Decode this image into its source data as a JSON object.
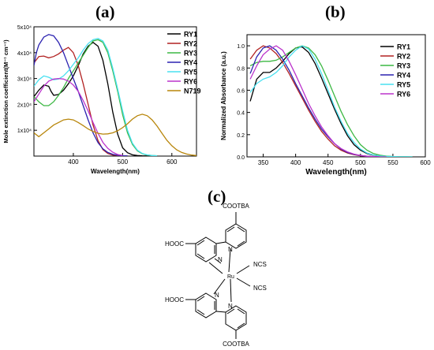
{
  "panels": {
    "a": "(a)",
    "b": "(b)",
    "c": "(c)"
  },
  "chart_data": [
    {
      "type": "line",
      "panel": "(a)",
      "xlabel": "Wavelength(nm)",
      "ylabel": "Mole extinction coefficient(M⁻¹ cm⁻¹)",
      "xlim": [
        320,
        650
      ],
      "ylim": [
        0,
        50000
      ],
      "xticks": [
        400,
        500,
        600
      ],
      "xtick_labels": [
        "400",
        "500",
        "600"
      ],
      "yticks": [
        10000,
        20000,
        30000,
        40000,
        50000
      ],
      "ytick_labels": [
        "1x10⁴",
        "2x10⁴",
        "3x10⁴",
        "4x10⁴",
        "5x10⁴"
      ],
      "legend_position": "top-right",
      "series": [
        {
          "name": "RY1",
          "color": "#000000",
          "x": [
            320,
            330,
            340,
            350,
            355,
            360,
            370,
            380,
            390,
            400,
            410,
            420,
            430,
            440,
            450,
            460,
            470,
            480,
            490,
            500,
            510,
            520,
            530,
            540,
            550
          ],
          "y": [
            23000,
            25500,
            27500,
            27000,
            25000,
            23500,
            23800,
            25500,
            28000,
            31000,
            35000,
            39500,
            42500,
            44000,
            42500,
            37000,
            28000,
            17000,
            8500,
            3200,
            1300,
            500,
            200,
            100,
            50
          ]
        },
        {
          "name": "RY2",
          "color": "#b22222",
          "x": [
            320,
            330,
            340,
            350,
            360,
            370,
            380,
            390,
            400,
            410,
            420,
            430,
            440,
            450,
            460,
            470,
            480,
            490,
            500,
            510
          ],
          "y": [
            36000,
            38500,
            38700,
            38000,
            38500,
            39500,
            41000,
            42000,
            40000,
            35000,
            28000,
            20000,
            12000,
            6000,
            2500,
            1000,
            400,
            200,
            100,
            50
          ]
        },
        {
          "name": "RY3",
          "color": "#3cb843",
          "x": [
            320,
            330,
            340,
            350,
            360,
            370,
            380,
            390,
            400,
            410,
            420,
            430,
            440,
            450,
            460,
            470,
            480,
            490,
            500,
            510,
            520,
            530,
            540,
            550,
            560,
            570
          ],
          "y": [
            23000,
            21000,
            19500,
            19500,
            21000,
            23500,
            26500,
            30000,
            33000,
            36000,
            39000,
            42000,
            44500,
            45000,
            44000,
            40000,
            33000,
            25000,
            16000,
            9000,
            4500,
            2000,
            900,
            400,
            200,
            100
          ]
        },
        {
          "name": "RY4",
          "color": "#2b22b0",
          "x": [
            320,
            325,
            330,
            340,
            350,
            360,
            370,
            380,
            390,
            400,
            410,
            420,
            430,
            440,
            450,
            460,
            470,
            480,
            490,
            500,
            510
          ],
          "y": [
            35000,
            40000,
            43000,
            46000,
            47000,
            46500,
            44000,
            40000,
            35000,
            30000,
            25000,
            19500,
            14000,
            9000,
            5200,
            2800,
            1400,
            700,
            300,
            150,
            50
          ]
        },
        {
          "name": "RY5",
          "color": "#48e0f0",
          "x": [
            320,
            330,
            340,
            350,
            360,
            370,
            380,
            390,
            400,
            410,
            420,
            430,
            440,
            450,
            460,
            470,
            480,
            490,
            500,
            510,
            520,
            530,
            540,
            550,
            560,
            570
          ],
          "y": [
            27000,
            29500,
            31000,
            30500,
            29500,
            29800,
            31000,
            33000,
            35500,
            38000,
            41000,
            43500,
            45000,
            45500,
            44500,
            41000,
            34000,
            26000,
            17500,
            10000,
            5000,
            2300,
            1000,
            450,
            200,
            100
          ]
        },
        {
          "name": "RY6",
          "color": "#bb33cc",
          "x": [
            320,
            330,
            340,
            350,
            360,
            370,
            380,
            390,
            400,
            410,
            420,
            430,
            440,
            450,
            460,
            470,
            480,
            490,
            500
          ],
          "y": [
            21000,
            24000,
            27000,
            29000,
            29800,
            30000,
            29800,
            29000,
            27500,
            25000,
            21500,
            17500,
            13000,
            8800,
            5300,
            3000,
            1500,
            600,
            200
          ]
        },
        {
          "name": "N719",
          "color": "#b8860b",
          "x": [
            320,
            330,
            340,
            350,
            360,
            370,
            380,
            390,
            400,
            410,
            420,
            430,
            440,
            450,
            460,
            470,
            480,
            490,
            500,
            510,
            520,
            530,
            540,
            550,
            560,
            570,
            580,
            590,
            600,
            610,
            620,
            630,
            640,
            650
          ],
          "y": [
            9000,
            7500,
            9000,
            10500,
            12000,
            13000,
            14000,
            14300,
            14000,
            13000,
            11800,
            10500,
            9500,
            8800,
            8500,
            8600,
            9000,
            9800,
            11000,
            12500,
            14300,
            15600,
            16200,
            15600,
            14000,
            11600,
            8800,
            6100,
            4000,
            2400,
            1400,
            800,
            400,
            200
          ]
        }
      ]
    },
    {
      "type": "line",
      "panel": "(b)",
      "xlabel": "Wavelength(nm)",
      "ylabel": "Normalized Absorbance (a.u.)",
      "xlim": [
        325,
        600
      ],
      "ylim": [
        0,
        1.1
      ],
      "xticks": [
        350,
        400,
        450,
        500,
        550,
        600
      ],
      "xtick_labels": [
        "350",
        "400",
        "450",
        "500",
        "550",
        "600"
      ],
      "yticks": [
        0,
        0.2,
        0.4,
        0.6,
        0.8,
        1.0
      ],
      "ytick_labels": [
        "0.0",
        "0.2",
        "0.4",
        "0.6",
        "0.8",
        "1.0"
      ],
      "legend_position": "top-right",
      "series": [
        {
          "name": "RY1",
          "color": "#000000",
          "x": [
            330,
            340,
            350,
            360,
            370,
            380,
            390,
            400,
            410,
            420,
            430,
            440,
            450,
            460,
            470,
            480,
            490,
            500,
            510,
            520,
            530,
            540,
            550,
            560,
            570,
            580
          ],
          "y": [
            0.5,
            0.7,
            0.76,
            0.76,
            0.8,
            0.86,
            0.93,
            0.98,
            0.99,
            0.94,
            0.84,
            0.71,
            0.57,
            0.43,
            0.3,
            0.19,
            0.11,
            0.06,
            0.03,
            0.015,
            0.008,
            0.004,
            0.002,
            0.001,
            0.0005,
            0
          ]
        },
        {
          "name": "RY2",
          "color": "#b22222",
          "x": [
            330,
            340,
            350,
            360,
            370,
            380,
            390,
            400,
            410,
            420,
            430,
            440,
            450,
            460,
            470,
            480,
            490,
            500,
            510,
            520,
            530,
            540
          ],
          "y": [
            0.88,
            0.96,
            1.0,
            0.98,
            0.93,
            0.85,
            0.75,
            0.64,
            0.53,
            0.42,
            0.32,
            0.23,
            0.16,
            0.1,
            0.06,
            0.035,
            0.02,
            0.01,
            0.005,
            0.002,
            0.001,
            0
          ]
        },
        {
          "name": "RY3",
          "color": "#3cb843",
          "x": [
            330,
            340,
            350,
            360,
            370,
            380,
            390,
            400,
            410,
            420,
            430,
            440,
            450,
            460,
            470,
            480,
            490,
            500,
            510,
            520,
            530,
            540,
            550,
            560,
            570,
            580
          ],
          "y": [
            0.82,
            0.85,
            0.86,
            0.86,
            0.87,
            0.9,
            0.94,
            0.98,
            1.0,
            0.98,
            0.92,
            0.82,
            0.69,
            0.55,
            0.41,
            0.29,
            0.19,
            0.11,
            0.06,
            0.03,
            0.015,
            0.007,
            0.003,
            0.001,
            0.0005,
            0
          ]
        },
        {
          "name": "RY4",
          "color": "#2b22b0",
          "x": [
            330,
            340,
            350,
            360,
            370,
            380,
            390,
            400,
            410,
            420,
            430,
            440,
            450,
            460,
            470,
            480,
            490,
            500,
            510,
            520,
            530,
            540
          ],
          "y": [
            0.75,
            0.9,
            0.98,
            1.0,
            0.96,
            0.88,
            0.78,
            0.66,
            0.55,
            0.44,
            0.34,
            0.25,
            0.18,
            0.12,
            0.07,
            0.04,
            0.022,
            0.012,
            0.006,
            0.003,
            0.001,
            0
          ]
        },
        {
          "name": "RY5",
          "color": "#48e0f0",
          "x": [
            330,
            340,
            350,
            360,
            370,
            380,
            390,
            400,
            410,
            420,
            430,
            440,
            450,
            460,
            470,
            480,
            490,
            500,
            510,
            520,
            530,
            540,
            550,
            560,
            570,
            580
          ],
          "y": [
            0.58,
            0.66,
            0.7,
            0.72,
            0.76,
            0.82,
            0.9,
            0.96,
            1.0,
            0.97,
            0.88,
            0.75,
            0.6,
            0.45,
            0.32,
            0.21,
            0.13,
            0.07,
            0.035,
            0.017,
            0.008,
            0.004,
            0.002,
            0.001,
            0.0005,
            0
          ]
        },
        {
          "name": "RY6",
          "color": "#bb33cc",
          "x": [
            330,
            340,
            350,
            360,
            370,
            380,
            390,
            400,
            410,
            420,
            430,
            440,
            450,
            460,
            470,
            480,
            490,
            500,
            510,
            520,
            530,
            540
          ],
          "y": [
            0.7,
            0.82,
            0.92,
            0.97,
            1.0,
            0.96,
            0.86,
            0.74,
            0.61,
            0.48,
            0.37,
            0.27,
            0.19,
            0.12,
            0.075,
            0.045,
            0.025,
            0.013,
            0.006,
            0.003,
            0.001,
            0
          ]
        }
      ]
    }
  ],
  "structure": {
    "labels": {
      "top_cootba": "COOTBA",
      "bottom_cootba": "COOTBA",
      "top_hooc": "HOOC",
      "bottom_hooc": "HOOC",
      "ncs_1": "NCS",
      "ncs_2": "NCS",
      "ru": "Ru",
      "n1": "N",
      "n2": "N",
      "n3": "N",
      "n4": "N"
    }
  }
}
